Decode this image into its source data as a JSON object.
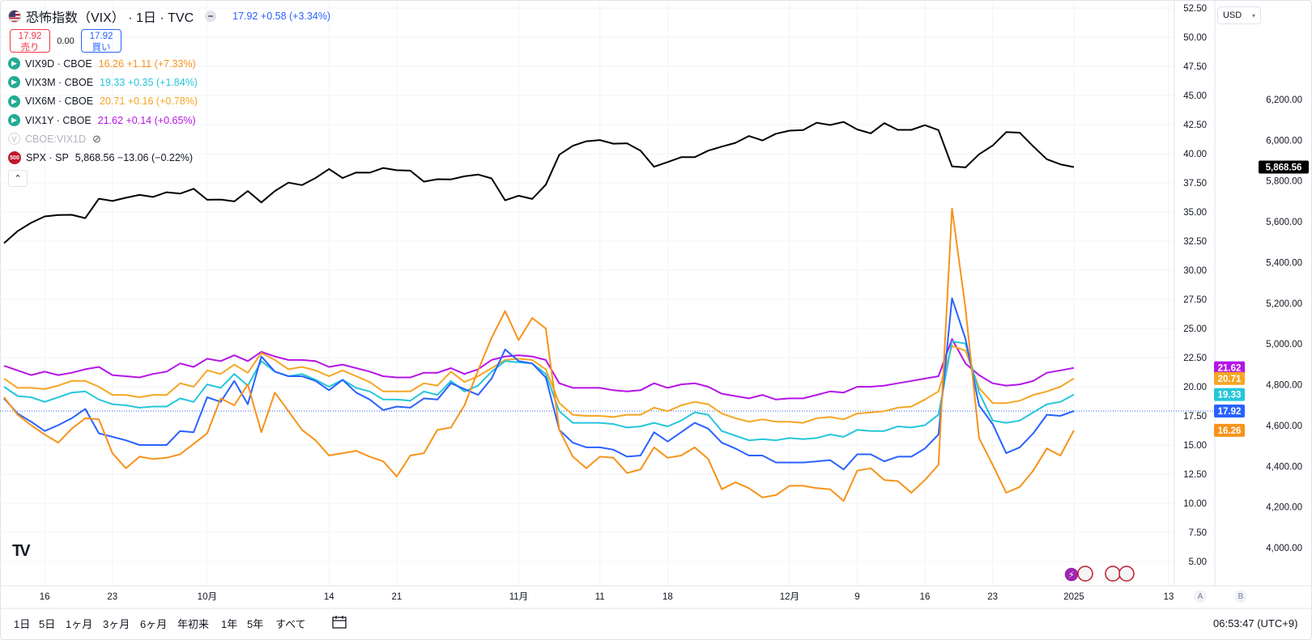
{
  "header": {
    "title": "恐怖指数（VIX） · 1日 · TVC",
    "price": "17.92",
    "change": "+0.58 (+3.34%)",
    "sell_price": "17.92",
    "sell_label": "売り",
    "spread": "0.00",
    "buy_price": "17.92",
    "buy_label": "買い"
  },
  "legend": [
    {
      "symbol": "VIX9D · CBOE",
      "value": "16.26 +1.11 (+7.33%)",
      "color": "#f7931a"
    },
    {
      "symbol": "VIX3M · CBOE",
      "value": "19.33 +0.35 (+1.84%)",
      "color": "#26c6da"
    },
    {
      "symbol": "VIX6M · CBOE",
      "value": "20.71 +0.16 (+0.78%)",
      "color": "#f5a623"
    },
    {
      "symbol": "VIX1Y · CBOE",
      "value": "21.62 +0.14 (+0.65%)",
      "color": "#b614e6"
    }
  ],
  "hidden_symbol": "CBOE:VIX1D",
  "hidden_icon": "V",
  "spx": {
    "icon": "500",
    "symbol": "SPX · SP",
    "value": "5,868.56 −13.06 (−0.22%)",
    "color": "#000000"
  },
  "currency": "USD",
  "logo": "TV",
  "left_axis": [
    "52.50",
    "50.00",
    "47.50",
    "45.00",
    "42.50",
    "40.00",
    "37.50",
    "35.00",
    "32.50",
    "30.00",
    "27.50",
    "25.00",
    "22.50",
    "20.00",
    "17.50",
    "15.00",
    "12.50",
    "10.00",
    "7.50",
    "5.00"
  ],
  "right_axis": [
    "6,200.00",
    "6,000.00",
    "5,800.00",
    "5,600.00",
    "5,400.00",
    "5,200.00",
    "5,000.00",
    "4,800.00",
    "4,600.00",
    "4,400.00",
    "4,200.00",
    "4,000.00"
  ],
  "price_tags": [
    {
      "label": "21.62",
      "color": "#b614e6",
      "value": 21.62
    },
    {
      "label": "20.71",
      "color": "#f5a623",
      "value": 20.71
    },
    {
      "label": "19.33",
      "color": "#26c6da",
      "value": 19.33
    },
    {
      "label": "17.92",
      "color": "#2962ff",
      "value": 17.92
    },
    {
      "label": "16.26",
      "color": "#f7931a",
      "value": 16.26
    }
  ],
  "spx_tag": "5,868.56",
  "x_axis": [
    {
      "label": "16",
      "index": 3
    },
    {
      "label": "23",
      "index": 8
    },
    {
      "label": "10月",
      "index": 15
    },
    {
      "label": "14",
      "index": 24
    },
    {
      "label": "21",
      "index": 29
    },
    {
      "label": "11月",
      "index": 38
    },
    {
      "label": "11",
      "index": 44
    },
    {
      "label": "18",
      "index": 49
    },
    {
      "label": "12月",
      "index": 58
    },
    {
      "label": "9",
      "index": 63
    },
    {
      "label": "16",
      "index": 68
    },
    {
      "label": "23",
      "index": 73
    },
    {
      "label": "2025",
      "index": 79
    },
    {
      "label": "13",
      "index": 86
    }
  ],
  "ranges": [
    "1日",
    "5日",
    "1ヶ月",
    "3ヶ月",
    "6ヶ月",
    "年初来",
    "1年",
    "5年",
    "すべて"
  ],
  "time": "06:53:47 (UTC+9)",
  "scale_a": "A",
  "scale_b": "B",
  "chart_data": {
    "type": "line",
    "x": [
      "2024-09-10",
      "2024-09-11",
      "2024-09-12",
      "2024-09-13",
      "2024-09-16",
      "2024-09-17",
      "2024-09-18",
      "2024-09-19",
      "2024-09-20",
      "2024-09-23",
      "2024-09-24",
      "2024-09-25",
      "2024-09-26",
      "2024-09-27",
      "2024-09-30",
      "2024-10-01",
      "2024-10-02",
      "2024-10-03",
      "2024-10-04",
      "2024-10-07",
      "2024-10-08",
      "2024-10-09",
      "2024-10-10",
      "2024-10-11",
      "2024-10-14",
      "2024-10-15",
      "2024-10-16",
      "2024-10-17",
      "2024-10-18",
      "2024-10-21",
      "2024-10-22",
      "2024-10-23",
      "2024-10-24",
      "2024-10-25",
      "2024-10-28",
      "2024-10-29",
      "2024-10-30",
      "2024-10-31",
      "2024-11-01",
      "2024-11-04",
      "2024-11-05",
      "2024-11-06",
      "2024-11-07",
      "2024-11-08",
      "2024-11-11",
      "2024-11-12",
      "2024-11-13",
      "2024-11-14",
      "2024-11-15",
      "2024-11-18",
      "2024-11-19",
      "2024-11-20",
      "2024-11-21",
      "2024-11-22",
      "2024-11-25",
      "2024-11-26",
      "2024-11-27",
      "2024-11-29",
      "2024-12-02",
      "2024-12-03",
      "2024-12-04",
      "2024-12-05",
      "2024-12-06",
      "2024-12-09",
      "2024-12-10",
      "2024-12-11",
      "2024-12-12",
      "2024-12-13",
      "2024-12-16",
      "2024-12-17",
      "2024-12-18",
      "2024-12-19",
      "2024-12-20",
      "2024-12-23",
      "2024-12-24",
      "2024-12-26",
      "2024-12-27",
      "2024-12-30",
      "2024-12-31",
      "2025-01-02"
    ],
    "left_ylim": [
      5.0,
      52.5
    ],
    "right_ylim": [
      4000,
      6200
    ],
    "grid": true,
    "series": [
      {
        "name": "VIX1Y · CBOE",
        "axis": "left",
        "color": "#b614e6",
        "values": [
          21.8,
          21.4,
          21.0,
          21.3,
          21.0,
          21.2,
          21.5,
          21.7,
          21.0,
          20.9,
          20.8,
          21.1,
          21.3,
          22.0,
          21.7,
          22.4,
          22.2,
          22.7,
          22.2,
          23.0,
          22.6,
          22.3,
          22.3,
          22.2,
          21.7,
          21.9,
          21.6,
          21.3,
          20.9,
          20.8,
          20.8,
          21.2,
          21.2,
          21.6,
          21.1,
          21.5,
          22.3,
          22.6,
          22.7,
          22.6,
          22.3,
          20.3,
          19.9,
          19.9,
          19.9,
          19.7,
          19.6,
          19.7,
          20.3,
          19.9,
          20.2,
          20.3,
          20.0,
          19.4,
          19.2,
          19.0,
          19.3,
          18.9,
          19.0,
          19.0,
          19.3,
          19.6,
          19.5,
          20.0,
          20.0,
          20.1,
          20.3,
          20.5,
          20.7,
          20.9,
          24.1,
          22.0,
          21.0,
          20.3,
          20.1,
          20.2,
          20.5,
          21.2,
          21.4,
          21.62
        ]
      },
      {
        "name": "VIX6M · CBOE",
        "axis": "left",
        "color": "#f5a623",
        "values": [
          20.7,
          19.9,
          19.9,
          19.8,
          20.1,
          20.5,
          20.5,
          20.0,
          19.3,
          19.3,
          19.1,
          19.3,
          19.3,
          20.3,
          20.0,
          21.4,
          21.1,
          21.9,
          21.2,
          22.9,
          22.3,
          21.5,
          21.7,
          21.4,
          20.9,
          21.4,
          20.9,
          20.4,
          19.6,
          19.6,
          19.6,
          20.3,
          20.1,
          21.3,
          20.4,
          20.9,
          21.6,
          22.3,
          22.4,
          22.3,
          21.5,
          18.6,
          17.6,
          17.5,
          17.5,
          17.4,
          17.6,
          17.6,
          18.2,
          17.9,
          18.4,
          18.7,
          18.5,
          17.7,
          17.3,
          17.0,
          17.2,
          17.0,
          17.0,
          16.9,
          17.3,
          17.4,
          17.2,
          17.7,
          17.8,
          17.9,
          18.2,
          18.3,
          18.9,
          19.6,
          23.5,
          23.1,
          19.9,
          18.6,
          18.6,
          18.8,
          19.3,
          19.6,
          20.0,
          20.71
        ]
      },
      {
        "name": "VIX3M · CBOE",
        "axis": "left",
        "color": "#26c6da",
        "values": [
          20.0,
          19.2,
          19.1,
          18.7,
          19.1,
          19.5,
          19.6,
          18.9,
          18.5,
          18.4,
          18.2,
          18.3,
          18.3,
          19.0,
          18.7,
          20.2,
          19.9,
          21.1,
          20.1,
          22.2,
          21.3,
          20.9,
          21.1,
          20.6,
          20.0,
          20.6,
          19.9,
          19.6,
          18.9,
          18.9,
          18.8,
          19.6,
          19.3,
          20.5,
          19.6,
          20.1,
          21.3,
          22.2,
          22.1,
          22.0,
          21.1,
          17.9,
          16.9,
          16.9,
          16.9,
          16.8,
          16.5,
          16.6,
          16.9,
          16.6,
          17.1,
          17.8,
          17.6,
          16.2,
          15.8,
          15.4,
          15.5,
          15.4,
          15.6,
          15.5,
          15.6,
          15.9,
          15.7,
          16.3,
          16.2,
          16.2,
          16.6,
          16.5,
          16.7,
          17.6,
          23.9,
          23.7,
          19.5,
          17.1,
          16.9,
          17.1,
          17.8,
          18.5,
          18.7,
          19.33
        ]
      },
      {
        "name": "恐怖指数（VIX）",
        "axis": "left",
        "color": "#2962ff",
        "values": [
          19.0,
          17.7,
          17.0,
          16.2,
          16.7,
          17.3,
          18.1,
          16.0,
          15.7,
          15.4,
          15.0,
          15.0,
          15.0,
          16.2,
          16.1,
          19.1,
          18.7,
          20.5,
          18.5,
          22.6,
          21.3,
          20.9,
          20.9,
          20.5,
          19.7,
          20.6,
          19.5,
          18.9,
          18.0,
          18.3,
          18.2,
          19.0,
          18.9,
          20.3,
          19.8,
          19.3,
          20.7,
          23.2,
          22.2,
          22.0,
          20.8,
          16.3,
          15.2,
          14.8,
          14.8,
          14.6,
          14.0,
          14.1,
          16.1,
          15.3,
          16.1,
          16.9,
          16.4,
          15.2,
          14.7,
          14.1,
          14.1,
          13.5,
          13.5,
          13.5,
          13.6,
          13.7,
          12.9,
          14.2,
          14.2,
          13.6,
          14.0,
          14.0,
          14.7,
          15.9,
          27.6,
          24.1,
          18.4,
          16.8,
          14.3,
          14.8,
          16.0,
          17.6,
          17.5,
          17.92
        ]
      },
      {
        "name": "VIX9D · CBOE",
        "axis": "left",
        "color": "#f7931a",
        "values": [
          19.1,
          17.6,
          16.7,
          15.9,
          15.2,
          16.4,
          17.3,
          17.2,
          14.3,
          13.0,
          14.0,
          13.8,
          13.9,
          14.2,
          15.1,
          16.0,
          19.0,
          18.4,
          20.2,
          16.1,
          19.5,
          17.9,
          16.3,
          15.4,
          14.1,
          14.3,
          14.5,
          14.0,
          13.6,
          12.3,
          14.1,
          14.3,
          16.3,
          16.5,
          18.4,
          21.4,
          24.2,
          26.5,
          24.0,
          25.9,
          25.0,
          16.3,
          14.0,
          13.0,
          14.0,
          13.9,
          12.6,
          12.9,
          14.8,
          13.9,
          14.1,
          14.8,
          13.8,
          11.2,
          11.8,
          11.3,
          10.5,
          10.7,
          11.5,
          11.5,
          11.3,
          11.2,
          10.2,
          12.8,
          13.0,
          12.0,
          11.9,
          10.9,
          12.0,
          13.3,
          35.3,
          26.7,
          15.6,
          13.3,
          10.9,
          11.4,
          12.8,
          14.7,
          14.1,
          16.26
        ]
      },
      {
        "name": "SPX · SP",
        "axis": "right",
        "color": "#000000",
        "values": [
          5495,
          5554,
          5595,
          5626,
          5633,
          5634,
          5618,
          5713,
          5702,
          5718,
          5732,
          5722,
          5745,
          5738,
          5762,
          5708,
          5709,
          5700,
          5751,
          5695,
          5751,
          5792,
          5780,
          5815,
          5859,
          5815,
          5842,
          5841,
          5864,
          5853,
          5851,
          5797,
          5809,
          5808,
          5823,
          5832,
          5813,
          5705,
          5728,
          5712,
          5782,
          5929,
          5973,
          5995,
          6001,
          5983,
          5985,
          5949,
          5870,
          5893,
          5917,
          5917,
          5949,
          5969,
          5987,
          6021,
          5999,
          6032,
          6047,
          6050,
          6086,
          6075,
          6090,
          6053,
          6034,
          6084,
          6051,
          6051,
          6074,
          6050,
          5872,
          5867,
          5931,
          5974,
          6040,
          6037,
          5970,
          5907,
          5882,
          5868.56
        ]
      }
    ]
  }
}
